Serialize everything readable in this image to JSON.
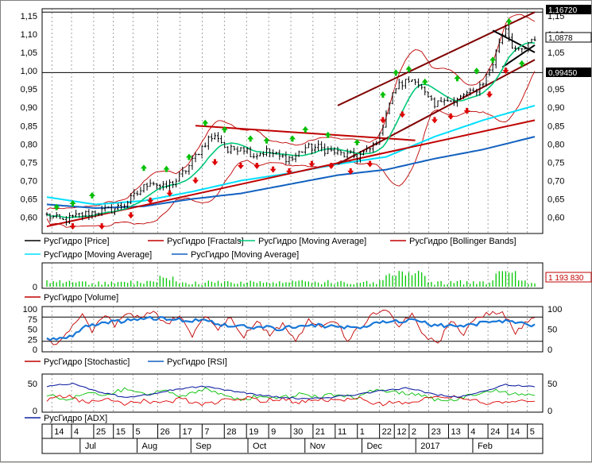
{
  "colors": {
    "price": "#000000",
    "fractal_up": "#00c000",
    "fractal_down": "#e00000",
    "ma_fast": "#00c878",
    "ma_mid": "#00e0ff",
    "ma_slow": "#1060c0",
    "bollinger": "#c00000",
    "trend_red": "#c00000",
    "trend_dark": "#800000",
    "volume": "#00c800",
    "stoch": "#c00000",
    "rsi": "#1878d8",
    "adx": "#1020a0",
    "di_plus": "#00c000",
    "di_minus": "#e00000",
    "grid": "#000000"
  },
  "flags": {
    "price_high": "1,16720",
    "price_last": "1,0878",
    "price_level": "0,99450",
    "volume_last": "1 193 830"
  },
  "legends": {
    "price": [
      {
        "label": "РусГидро [Price]",
        "color": "#000000"
      },
      {
        "label": "РусГидро [Fractals]",
        "color": "#c00000"
      },
      {
        "label": "РусГидро [Moving Average]",
        "color": "#00c878"
      },
      {
        "label": "РусГидро [Bollinger Bands]",
        "color": "#c00000"
      },
      {
        "label": "РусГидро [Moving Average]",
        "color": "#00e0ff"
      },
      {
        "label": "РусГидро [Moving Average]",
        "color": "#1060c0"
      }
    ],
    "volume": [
      {
        "label": "РусГидро [Volume]",
        "color": "#c00000"
      }
    ],
    "osc": [
      {
        "label": "РусГидро [Stochastic]",
        "color": "#c00000"
      },
      {
        "label": "РусГидро [RSI]",
        "color": "#1060c0"
      }
    ],
    "adx": [
      {
        "label": "РусГидро [ADX]",
        "color": "#1020a0"
      }
    ]
  },
  "chart_data": [
    {
      "type": "candlestick",
      "panel": "price",
      "y_ticks": [
        "0,60",
        "0,65",
        "0,70",
        "0,75",
        "0,80",
        "0,85",
        "0,90",
        "0,95",
        "1,00",
        "1,05",
        "1,10",
        "1,15"
      ],
      "ylim": [
        0.56,
        1.165
      ],
      "level_lines": [
        1.16,
        0.995
      ],
      "trendlines": [
        {
          "from": [
            0,
            0.575
          ],
          "to": [
            151,
            0.865
          ],
          "color": "trend_red"
        },
        {
          "from": [
            46,
            0.85
          ],
          "to": [
            114,
            0.81
          ],
          "color": "trend_red"
        },
        {
          "from": [
            90,
            0.905
          ],
          "to": [
            151,
            1.16
          ],
          "color": "trend_dark"
        },
        {
          "from": [
            90,
            0.745
          ],
          "to": [
            151,
            1.03
          ],
          "color": "trend_dark"
        },
        {
          "from": [
            138,
            1.11
          ],
          "to": [
            151,
            1.05
          ],
          "color": "price"
        },
        {
          "from": [
            141,
            1.01
          ],
          "to": [
            151,
            1.07
          ],
          "color": "price"
        }
      ],
      "price_anchors": [
        [
          0,
          0.605
        ],
        [
          5,
          0.59
        ],
        [
          10,
          0.605
        ],
        [
          15,
          0.615
        ],
        [
          20,
          0.62
        ],
        [
          24,
          0.635
        ],
        [
          28,
          0.665
        ],
        [
          32,
          0.7
        ],
        [
          36,
          0.68
        ],
        [
          40,
          0.7
        ],
        [
          44,
          0.74
        ],
        [
          47,
          0.78
        ],
        [
          50,
          0.815
        ],
        [
          53,
          0.82
        ],
        [
          56,
          0.78
        ],
        [
          60,
          0.795
        ],
        [
          64,
          0.77
        ],
        [
          68,
          0.78
        ],
        [
          72,
          0.765
        ],
        [
          76,
          0.76
        ],
        [
          80,
          0.79
        ],
        [
          84,
          0.79
        ],
        [
          88,
          0.78
        ],
        [
          92,
          0.77
        ],
        [
          96,
          0.765
        ],
        [
          100,
          0.785
        ],
        [
          103,
          0.82
        ],
        [
          105,
          0.89
        ],
        [
          108,
          0.955
        ],
        [
          111,
          0.97
        ],
        [
          114,
          0.98
        ],
        [
          117,
          0.935
        ],
        [
          120,
          0.9
        ],
        [
          123,
          0.93
        ],
        [
          126,
          0.91
        ],
        [
          129,
          0.935
        ],
        [
          132,
          0.94
        ],
        [
          135,
          0.97
        ],
        [
          138,
          1.02
        ],
        [
          140,
          1.08
        ],
        [
          142,
          1.12
        ],
        [
          144,
          1.07
        ],
        [
          146,
          1.05
        ],
        [
          148,
          1.06
        ],
        [
          151,
          1.088
        ]
      ],
      "ma_slow_anchors": [
        [
          0,
          0.635
        ],
        [
          15,
          0.625
        ],
        [
          30,
          0.63
        ],
        [
          45,
          0.65
        ],
        [
          60,
          0.665
        ],
        [
          75,
          0.69
        ],
        [
          90,
          0.715
        ],
        [
          105,
          0.73
        ],
        [
          120,
          0.76
        ],
        [
          135,
          0.785
        ],
        [
          151,
          0.82
        ]
      ],
      "ma_mid_anchors": [
        [
          0,
          0.655
        ],
        [
          15,
          0.635
        ],
        [
          30,
          0.645
        ],
        [
          45,
          0.67
        ],
        [
          60,
          0.7
        ],
        [
          75,
          0.72
        ],
        [
          90,
          0.745
        ],
        [
          105,
          0.765
        ],
        [
          120,
          0.82
        ],
        [
          135,
          0.865
        ],
        [
          151,
          0.905
        ]
      ],
      "fractals_up": [
        [
          3,
          0.628
        ],
        [
          8,
          0.638
        ],
        [
          14,
          0.66
        ],
        [
          30,
          0.735
        ],
        [
          37,
          0.732
        ],
        [
          44,
          0.765
        ],
        [
          49,
          0.858
        ],
        [
          55,
          0.84
        ],
        [
          63,
          0.815
        ],
        [
          68,
          0.81
        ],
        [
          76,
          0.815
        ],
        [
          80,
          0.84
        ],
        [
          87,
          0.825
        ],
        [
          96,
          0.805
        ],
        [
          104,
          0.935
        ],
        [
          108,
          0.995
        ],
        [
          112,
          1.005
        ],
        [
          117,
          0.97
        ],
        [
          127,
          0.98
        ],
        [
          133,
          1.0
        ],
        [
          138,
          1.03
        ],
        [
          143,
          1.135
        ],
        [
          147,
          1.02
        ]
      ],
      "fractals_down": [
        [
          8,
          0.575
        ],
        [
          17,
          0.575
        ],
        [
          26,
          0.605
        ],
        [
          32,
          0.645
        ],
        [
          38,
          0.665
        ],
        [
          46,
          0.7
        ],
        [
          52,
          0.75
        ],
        [
          60,
          0.74
        ],
        [
          65,
          0.74
        ],
        [
          70,
          0.73
        ],
        [
          75,
          0.725
        ],
        [
          82,
          0.745
        ],
        [
          88,
          0.74
        ],
        [
          94,
          0.725
        ],
        [
          100,
          0.745
        ],
        [
          104,
          0.865
        ],
        [
          110,
          0.88
        ],
        [
          120,
          0.865
        ],
        [
          125,
          0.875
        ],
        [
          130,
          0.89
        ],
        [
          137,
          0.935
        ],
        [
          142,
          1.0
        ]
      ]
    },
    {
      "type": "bar",
      "panel": "volume",
      "y_ticks": [
        "0"
      ],
      "ylim": [
        0,
        100
      ],
      "volume_seed": 7
    },
    {
      "type": "line",
      "panel": "oscillators",
      "y_ticks": [
        "0",
        "25",
        "50",
        "75",
        "100"
      ],
      "ylim": [
        0,
        100
      ],
      "level_lines": [
        80,
        20
      ],
      "rsi_anchors": [
        [
          0,
          25
        ],
        [
          6,
          28
        ],
        [
          12,
          55
        ],
        [
          18,
          68
        ],
        [
          24,
          70
        ],
        [
          30,
          75
        ],
        [
          36,
          78
        ],
        [
          42,
          72
        ],
        [
          48,
          70
        ],
        [
          54,
          62
        ],
        [
          60,
          58
        ],
        [
          66,
          55
        ],
        [
          72,
          52
        ],
        [
          78,
          58
        ],
        [
          84,
          60
        ],
        [
          90,
          56
        ],
        [
          96,
          52
        ],
        [
          102,
          68
        ],
        [
          108,
          72
        ],
        [
          114,
          70
        ],
        [
          120,
          60
        ],
        [
          126,
          58
        ],
        [
          132,
          62
        ],
        [
          138,
          70
        ],
        [
          144,
          68
        ],
        [
          151,
          60
        ]
      ],
      "stoch_anchors": [
        [
          0,
          20
        ],
        [
          4,
          15
        ],
        [
          8,
          55
        ],
        [
          11,
          85
        ],
        [
          14,
          45
        ],
        [
          18,
          88
        ],
        [
          21,
          60
        ],
        [
          25,
          92
        ],
        [
          29,
          75
        ],
        [
          33,
          95
        ],
        [
          37,
          60
        ],
        [
          41,
          85
        ],
        [
          45,
          35
        ],
        [
          49,
          85
        ],
        [
          53,
          50
        ],
        [
          57,
          80
        ],
        [
          61,
          30
        ],
        [
          65,
          72
        ],
        [
          69,
          35
        ],
        [
          73,
          65
        ],
        [
          77,
          20
        ],
        [
          81,
          75
        ],
        [
          85,
          55
        ],
        [
          89,
          72
        ],
        [
          93,
          25
        ],
        [
          97,
          55
        ],
        [
          101,
          88
        ],
        [
          105,
          95
        ],
        [
          109,
          60
        ],
        [
          113,
          85
        ],
        [
          117,
          30
        ],
        [
          121,
          15
        ],
        [
          125,
          70
        ],
        [
          129,
          40
        ],
        [
          133,
          80
        ],
        [
          137,
          90
        ],
        [
          141,
          95
        ],
        [
          145,
          40
        ],
        [
          148,
          65
        ],
        [
          151,
          75
        ]
      ]
    },
    {
      "type": "line",
      "panel": "adx",
      "y_ticks": [
        "0",
        "50"
      ],
      "ylim": [
        0,
        65
      ],
      "adx_anchors": [
        [
          0,
          45
        ],
        [
          8,
          50
        ],
        [
          16,
          35
        ],
        [
          24,
          25
        ],
        [
          32,
          30
        ],
        [
          40,
          40
        ],
        [
          48,
          45
        ],
        [
          56,
          38
        ],
        [
          64,
          30
        ],
        [
          72,
          25
        ],
        [
          80,
          22
        ],
        [
          88,
          25
        ],
        [
          96,
          30
        ],
        [
          104,
          38
        ],
        [
          112,
          42
        ],
        [
          120,
          30
        ],
        [
          128,
          25
        ],
        [
          136,
          38
        ],
        [
          142,
          48
        ],
        [
          151,
          45
        ]
      ],
      "di_plus_anchors": [
        [
          0,
          30
        ],
        [
          6,
          20
        ],
        [
          12,
          35
        ],
        [
          18,
          28
        ],
        [
          24,
          40
        ],
        [
          30,
          30
        ],
        [
          36,
          38
        ],
        [
          42,
          25
        ],
        [
          48,
          40
        ],
        [
          54,
          30
        ],
        [
          60,
          20
        ],
        [
          66,
          28
        ],
        [
          72,
          22
        ],
        [
          78,
          30
        ],
        [
          84,
          25
        ],
        [
          90,
          30
        ],
        [
          96,
          22
        ],
        [
          102,
          40
        ],
        [
          108,
          35
        ],
        [
          114,
          30
        ],
        [
          120,
          20
        ],
        [
          126,
          22
        ],
        [
          132,
          30
        ],
        [
          138,
          38
        ],
        [
          144,
          30
        ],
        [
          151,
          28
        ]
      ],
      "di_minus_anchors": [
        [
          0,
          20
        ],
        [
          6,
          28
        ],
        [
          12,
          15
        ],
        [
          18,
          22
        ],
        [
          24,
          12
        ],
        [
          30,
          18
        ],
        [
          36,
          14
        ],
        [
          42,
          22
        ],
        [
          48,
          10
        ],
        [
          54,
          18
        ],
        [
          60,
          25
        ],
        [
          66,
          18
        ],
        [
          72,
          22
        ],
        [
          78,
          15
        ],
        [
          84,
          20
        ],
        [
          90,
          18
        ],
        [
          96,
          25
        ],
        [
          102,
          12
        ],
        [
          108,
          15
        ],
        [
          114,
          18
        ],
        [
          120,
          28
        ],
        [
          126,
          25
        ],
        [
          132,
          18
        ],
        [
          138,
          12
        ],
        [
          144,
          18
        ],
        [
          151,
          20
        ]
      ]
    }
  ],
  "x_axis": {
    "days": [
      {
        "label": "14",
        "i": 2
      },
      {
        "label": "4",
        "i": 10
      },
      {
        "label": "25",
        "i": 19
      },
      {
        "label": "15",
        "i": 27
      },
      {
        "label": "5",
        "i": 35
      },
      {
        "label": "26",
        "i": 45
      },
      {
        "label": "17",
        "i": 54
      },
      {
        "label": "7",
        "i": 63
      },
      {
        "label": "28",
        "i": 72
      },
      {
        "label": "19",
        "i": 81
      },
      {
        "label": "9",
        "i": 90
      },
      {
        "label": "30",
        "i": 99
      },
      {
        "label": "21",
        "i": 108
      },
      {
        "label": "11",
        "i": 117
      },
      {
        "label": "1",
        "i": 126
      },
      {
        "label": "22",
        "i": 135
      },
      {
        "label": "12",
        "i": 141
      },
      {
        "label": "2",
        "i": 147
      },
      {
        "label": "23",
        "i": 155
      },
      {
        "label": "13",
        "i": 163
      },
      {
        "label": "4",
        "i": 171
      },
      {
        "label": "24",
        "i": 179
      },
      {
        "label": "14",
        "i": 187
      },
      {
        "label": "5",
        "i": 195
      }
    ],
    "months": [
      {
        "label": "Jul",
        "i": 12
      },
      {
        "label": "Aug",
        "i": 30
      },
      {
        "label": "Sep",
        "i": 47
      },
      {
        "label": "Oct",
        "i": 65
      },
      {
        "label": "Nov",
        "i": 83
      },
      {
        "label": "Dec",
        "i": 101
      },
      {
        "label": "2017",
        "i": 118
      },
      {
        "label": "Feb",
        "i": 136
      }
    ]
  }
}
